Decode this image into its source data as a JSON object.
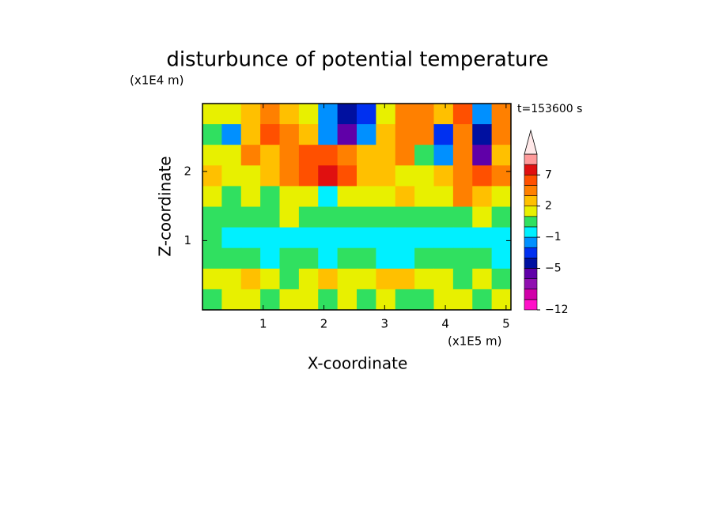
{
  "chart_data": {
    "type": "contour",
    "title": "disturbunce of potential temperature",
    "y_unit_label": "(x1E4 m)",
    "x_unit_label": "(x1E5 m)",
    "time_label": "t=153600 s",
    "xlabel": "X-coordinate",
    "ylabel": "Z-coordinate",
    "xlim": [
      0,
      5.08
    ],
    "ylim": [
      0,
      2.98
    ],
    "xticks": [
      1,
      2,
      3,
      4,
      5
    ],
    "yticks": [
      1,
      2
    ],
    "levels": [
      -12,
      -10,
      -8,
      -6,
      -5,
      -4,
      -3,
      -1,
      0,
      1,
      2,
      3,
      5,
      7,
      9,
      11
    ],
    "colors": [
      "#ff10c8",
      "#d000a8",
      "#9010b0",
      "#6000a8",
      "#0010a0",
      "#0030f0",
      "#0090ff",
      "#00f0ff",
      "#30e060",
      "#e8f000",
      "#ffc000",
      "#ff8000",
      "#ff5000",
      "#e01010",
      "#ff9a9a"
    ],
    "extend_color": "#ffe8e8",
    "colorbar_ticks": [
      {
        "value": 7,
        "label": "7"
      },
      {
        "value": 2,
        "label": "2"
      },
      {
        "value": -1,
        "label": "−1"
      },
      {
        "value": -5,
        "label": "−5"
      },
      {
        "value": -12,
        "label": "−12"
      }
    ],
    "field": [
      [
        1,
        1.5,
        2,
        4,
        2,
        1,
        -2,
        -5,
        -4,
        1,
        3,
        4,
        2,
        6,
        -3,
        4
      ],
      [
        0,
        -3,
        2,
        5,
        4,
        2,
        -3,
        -6,
        -3,
        2,
        4,
        3,
        -4,
        4,
        -5,
        3
      ],
      [
        1,
        1,
        3,
        2,
        4,
        5,
        6,
        4,
        2,
        2,
        3,
        0,
        -3,
        3,
        -6,
        2
      ],
      [
        2,
        1,
        1.5,
        2,
        3,
        6,
        7,
        5,
        2,
        2,
        1.5,
        1,
        2,
        4,
        5,
        3
      ],
      [
        1.5,
        0.5,
        1,
        0.5,
        1,
        1.5,
        -0.5,
        1,
        1,
        1.5,
        2,
        1,
        1,
        3,
        2,
        1
      ],
      [
        0.5,
        0.5,
        0.5,
        0.5,
        1,
        0.5,
        0.5,
        0.5,
        0.5,
        0.5,
        0.5,
        0.5,
        0.5,
        0.5,
        1,
        0.5
      ],
      [
        0.5,
        -0.5,
        -0.5,
        -0.5,
        -0.5,
        -0.5,
        -0.5,
        -0.5,
        -0.5,
        -0.5,
        -0.5,
        -0.5,
        -0.5,
        -0.5,
        -0.5,
        -0.5
      ],
      [
        0.5,
        0.5,
        0.5,
        -0.5,
        0.5,
        0.5,
        -0.5,
        0.5,
        0.5,
        -0.5,
        -0.5,
        0.5,
        0.5,
        0.5,
        0.5,
        -0.5
      ],
      [
        1.5,
        1.5,
        2,
        1.5,
        0.5,
        1.5,
        2,
        1.5,
        1.5,
        2.5,
        2,
        1.5,
        1.5,
        0.5,
        1.5,
        0.5
      ],
      [
        0.5,
        1.5,
        1.5,
        0.5,
        1.5,
        1.5,
        0.5,
        1.5,
        0.5,
        1.5,
        0.5,
        0.5,
        1.5,
        1.5,
        0.5,
        1.5
      ]
    ]
  }
}
